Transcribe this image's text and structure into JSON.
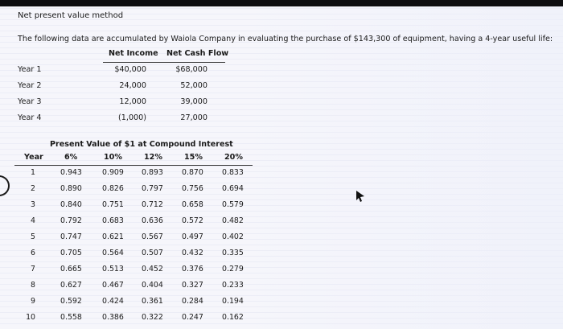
{
  "title": "Net present value method",
  "intro": "The following data are accumulated by Waiola Company in evaluating the purchase of $143,300 of equipment, having a 4-year useful life:",
  "income_table": {
    "headers": [
      "Net Income",
      "Net Cash Flow"
    ],
    "rows": [
      {
        "year": "Year 1",
        "income": "$40,000",
        "cash": "$68,000"
      },
      {
        "year": "Year 2",
        "income": "24,000",
        "cash": "52,000"
      },
      {
        "year": "Year 3",
        "income": "12,000",
        "cash": "39,000"
      },
      {
        "year": "Year 4",
        "income": "(1,000)",
        "cash": "27,000"
      }
    ]
  },
  "pv_table": {
    "title": "Present Value of $1 at Compound Interest",
    "headers": [
      "Year",
      "6%",
      "10%",
      "12%",
      "15%",
      "20%"
    ],
    "rows": [
      [
        "1",
        "0.943",
        "0.909",
        "0.893",
        "0.870",
        "0.833"
      ],
      [
        "2",
        "0.890",
        "0.826",
        "0.797",
        "0.756",
        "0.694"
      ],
      [
        "3",
        "0.840",
        "0.751",
        "0.712",
        "0.658",
        "0.579"
      ],
      [
        "4",
        "0.792",
        "0.683",
        "0.636",
        "0.572",
        "0.482"
      ],
      [
        "5",
        "0.747",
        "0.621",
        "0.567",
        "0.497",
        "0.402"
      ],
      [
        "6",
        "0.705",
        "0.564",
        "0.507",
        "0.432",
        "0.335"
      ],
      [
        "7",
        "0.665",
        "0.513",
        "0.452",
        "0.376",
        "0.279"
      ],
      [
        "8",
        "0.627",
        "0.467",
        "0.404",
        "0.327",
        "0.233"
      ],
      [
        "9",
        "0.592",
        "0.424",
        "0.361",
        "0.284",
        "0.194"
      ],
      [
        "10",
        "0.558",
        "0.386",
        "0.322",
        "0.247",
        "0.162"
      ]
    ]
  },
  "icons": {
    "cursor": "mouse-cursor-icon"
  }
}
